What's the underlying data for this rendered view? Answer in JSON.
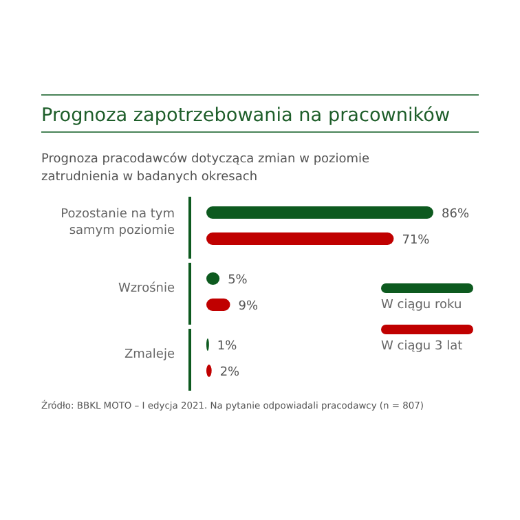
{
  "chart_data": {
    "type": "bar",
    "orientation": "horizontal",
    "title": "Prognoza zapotrzebowania na pracowników",
    "subtitle": "Prognoza pracodawców dotycząca zmian w poziomie zatrudnienia w badanych okresach",
    "categories": [
      "Pozostanie na tym samym poziomie",
      "Wzrośnie",
      "Zmaleje"
    ],
    "series": [
      {
        "name": "W ciągu roku",
        "color": "#0d5a1f",
        "values": [
          86,
          5,
          1
        ],
        "value_labels": [
          "86%",
          "5%",
          "1%"
        ]
      },
      {
        "name": "W ciągu 3 lat",
        "color": "#c00000",
        "values": [
          71,
          9,
          2
        ],
        "value_labels": [
          "71%",
          "9%",
          "2%"
        ]
      }
    ],
    "legend": "right",
    "grid": false,
    "annotations": [
      "Źródło: BBKL MOTO – I edycja 2021. Na pytanie odpowiadali pracodawcy (n = 807)"
    ]
  }
}
